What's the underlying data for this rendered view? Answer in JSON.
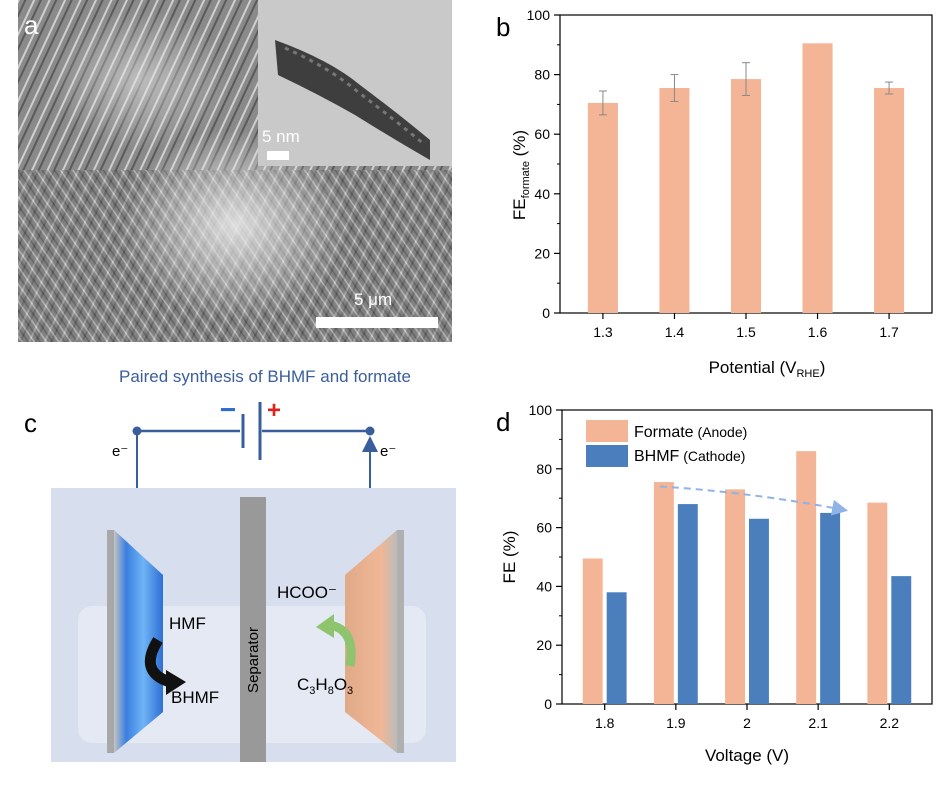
{
  "panel_a": {
    "label": "a",
    "scale_bar_main": "5 μm",
    "scale_bar_inset": "5 nm"
  },
  "panel_c": {
    "label": "c",
    "title": "Paired synthesis of BHMF and formate",
    "minus": "−",
    "plus": "+",
    "electron_left": "e⁻",
    "electron_right": "e⁻",
    "separator": "Separator",
    "hmf": "HMF",
    "bhmf": "BHMF",
    "hcoo": "HCOO⁻",
    "glycerol": "C₃H₈O₃"
  },
  "colors": {
    "salmon": "#f4b596",
    "blue": "#4a7ebd",
    "title_blue": "#3a5e9c",
    "cell_bg": "#d7deee",
    "separator": "#999999"
  },
  "chart_data": [
    {
      "panel": "b",
      "type": "bar",
      "title": "",
      "xlabel": "Potential (V",
      "xlabel_sub": "RHE",
      "xlabel_end": ")",
      "ylabel": "FE",
      "ylabel_sub": "formate",
      "ylabel_end": " (%)",
      "categories": [
        "1.3",
        "1.4",
        "1.5",
        "1.6",
        "1.7"
      ],
      "values": [
        70.5,
        75.5,
        78.5,
        90.5,
        75.5
      ],
      "errors": [
        4,
        4.5,
        5.5,
        0.3,
        2
      ],
      "ylim": [
        0,
        100
      ],
      "yticks": [
        "0",
        "20",
        "40",
        "60",
        "80",
        "100"
      ],
      "grid": false
    },
    {
      "panel": "d",
      "type": "bar",
      "title": "",
      "xlabel": "Voltage (V)",
      "ylabel": "FE (%)",
      "categories": [
        "1.8",
        "1.9",
        "2",
        "2.1",
        "2.2"
      ],
      "series": [
        {
          "name": "Formate",
          "detail": "(Anode)",
          "values": [
            49.5,
            75.5,
            73,
            86,
            68.5
          ]
        },
        {
          "name": "BHMF",
          "detail": "(Cathode)",
          "values": [
            38,
            68,
            63,
            65,
            43.5
          ]
        }
      ],
      "ylim": [
        0,
        100
      ],
      "yticks": [
        "0",
        "20",
        "40",
        "60",
        "80",
        "100"
      ],
      "legend": "top-left",
      "trend_arrow": {
        "from": "1.9",
        "to": "2.1"
      },
      "grid": false
    }
  ]
}
